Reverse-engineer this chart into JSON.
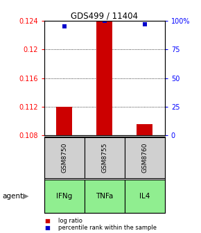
{
  "title": "GDS499 / 11404",
  "categories": [
    "GSM8750",
    "GSM8755",
    "GSM8760"
  ],
  "agent_labels": [
    "IFNg",
    "TNFa",
    "IL4"
  ],
  "log_ratio": [
    0.112,
    0.1241,
    0.1095
  ],
  "percentile": [
    95,
    100,
    97
  ],
  "ylim_left": [
    0.108,
    0.124
  ],
  "ylim_right": [
    0,
    100
  ],
  "yticks_left": [
    0.108,
    0.112,
    0.116,
    0.12,
    0.124
  ],
  "ytick_labels_left": [
    "0.108",
    "0.112",
    "0.116",
    "0.12",
    "0.124"
  ],
  "yticks_right": [
    0,
    25,
    50,
    75,
    100
  ],
  "ytick_labels_right": [
    "0",
    "25",
    "50",
    "75",
    "100%"
  ],
  "bar_color": "#cc0000",
  "dot_color": "#0000cc",
  "sample_box_color": "#d0d0d0",
  "agent_box_color": "#90ee90",
  "agent_label": "agent",
  "legend_bar": "log ratio",
  "legend_dot": "percentile rank within the sample",
  "bar_width": 0.4,
  "baseline": 0.108
}
